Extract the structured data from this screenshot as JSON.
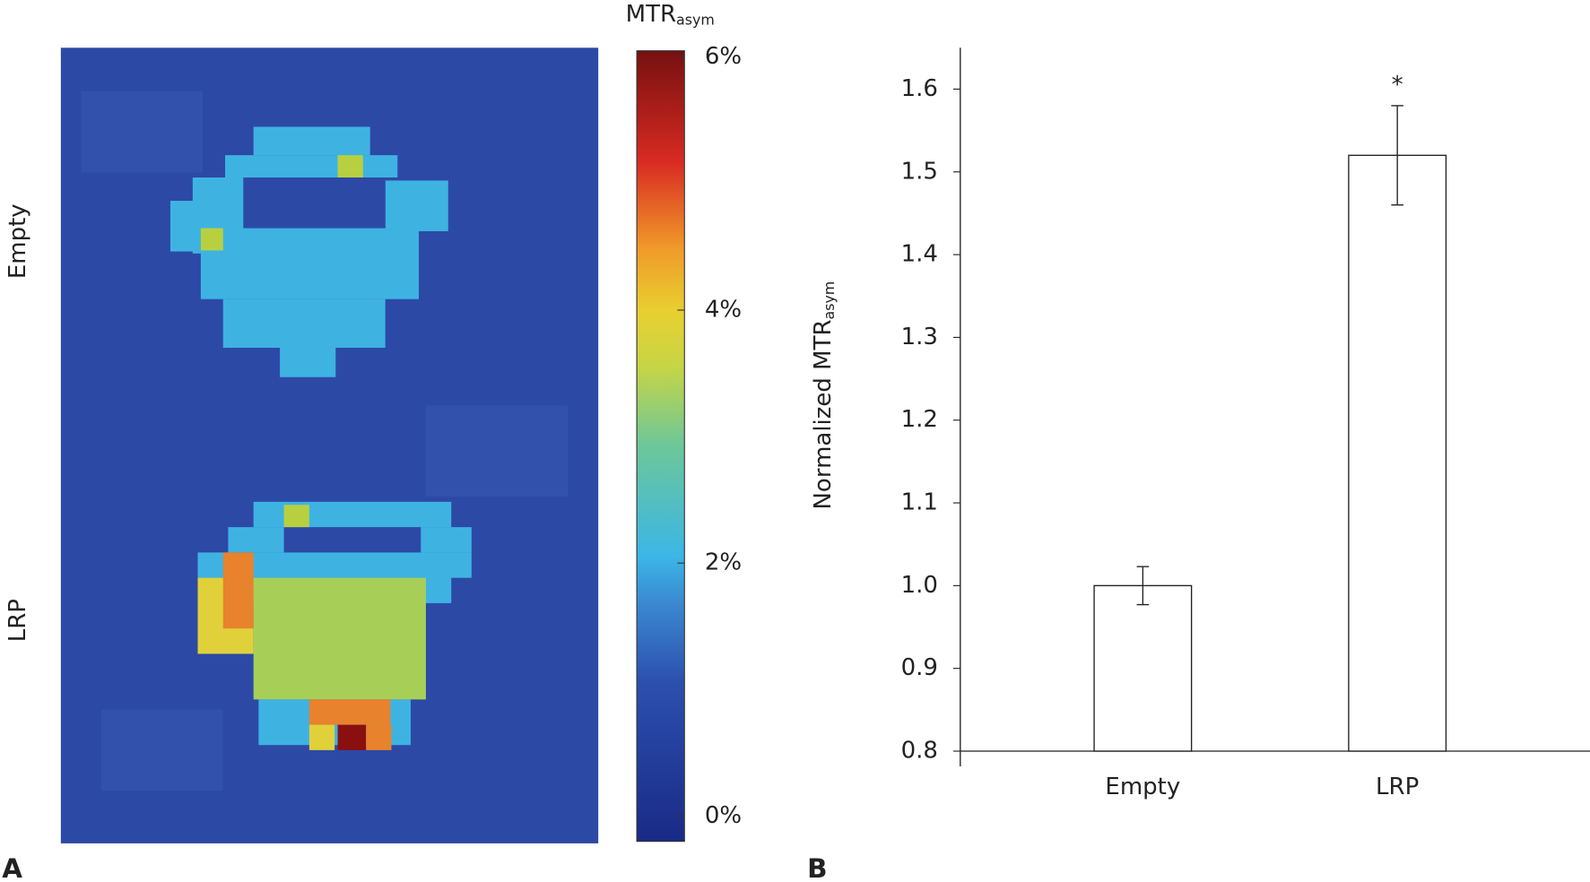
{
  "chart_data": [
    {
      "type": "heatmap",
      "label": "A",
      "title": {
        "text": "MTR",
        "sub": "asym"
      },
      "row_labels": [
        "Empty",
        "LRP"
      ],
      "colormap": "jet",
      "clim": [
        -0.2,
        6.05
      ],
      "cticks": [
        {
          "value": 0,
          "label": "0%"
        },
        {
          "value": 2,
          "label": "2%"
        },
        {
          "value": 4,
          "label": "4%"
        },
        {
          "value": 6,
          "label": "6%"
        }
      ]
    },
    {
      "type": "bar",
      "label": "B",
      "ylabel": {
        "text": "Normalized MTR",
        "sub": "asym"
      },
      "categories": [
        "Empty",
        "LRP"
      ],
      "values": [
        1.0,
        1.52
      ],
      "errors": [
        0.023,
        0.06
      ],
      "markers": [
        null,
        "*"
      ],
      "color": "#ffffff",
      "ylim": [
        0.8,
        1.65
      ],
      "yticks": [
        0.8,
        0.9,
        {
          "value": 1,
          "label": "1.0"
        },
        1.1,
        1.2,
        1.3,
        1.4,
        1.5,
        1.6
      ]
    }
  ]
}
